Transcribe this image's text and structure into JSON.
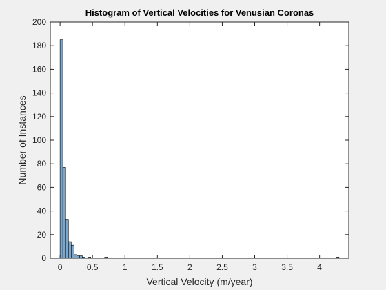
{
  "chart_data": {
    "type": "bar",
    "title": "Histogram of Vertical Velocities for Venusian Coronas",
    "xlabel": "Vertical Velocity (m/year)",
    "ylabel": "Number of Instances",
    "xlim": [
      -0.15,
      4.45
    ],
    "ylim": [
      0,
      200
    ],
    "xticks": [
      "0",
      "0.5",
      "1",
      "1.5",
      "2",
      "2.5",
      "3",
      "3.5",
      "4"
    ],
    "xtick_values": [
      0,
      0.5,
      1,
      1.5,
      2,
      2.5,
      3,
      3.5,
      4
    ],
    "yticks": [
      "0",
      "20",
      "40",
      "60",
      "80",
      "100",
      "120",
      "140",
      "160",
      "180",
      "200"
    ],
    "ytick_values": [
      0,
      20,
      40,
      60,
      80,
      100,
      120,
      140,
      160,
      180,
      200
    ],
    "bin_width": 0.043,
    "bins": [
      {
        "x_start": 0.0,
        "count": 185
      },
      {
        "x_start": 0.043,
        "count": 77
      },
      {
        "x_start": 0.086,
        "count": 33
      },
      {
        "x_start": 0.129,
        "count": 14
      },
      {
        "x_start": 0.172,
        "count": 11
      },
      {
        "x_start": 0.215,
        "count": 3
      },
      {
        "x_start": 0.258,
        "count": 2
      },
      {
        "x_start": 0.301,
        "count": 2
      },
      {
        "x_start": 0.344,
        "count": 1
      },
      {
        "x_start": 0.387,
        "count": 0
      },
      {
        "x_start": 0.43,
        "count": 1
      },
      {
        "x_start": 0.688,
        "count": 1
      },
      {
        "x_start": 4.257,
        "count": 1
      }
    ],
    "bar_color": "#7ba7cc",
    "bar_edge_color": "#000000",
    "grid": false,
    "box": true
  }
}
